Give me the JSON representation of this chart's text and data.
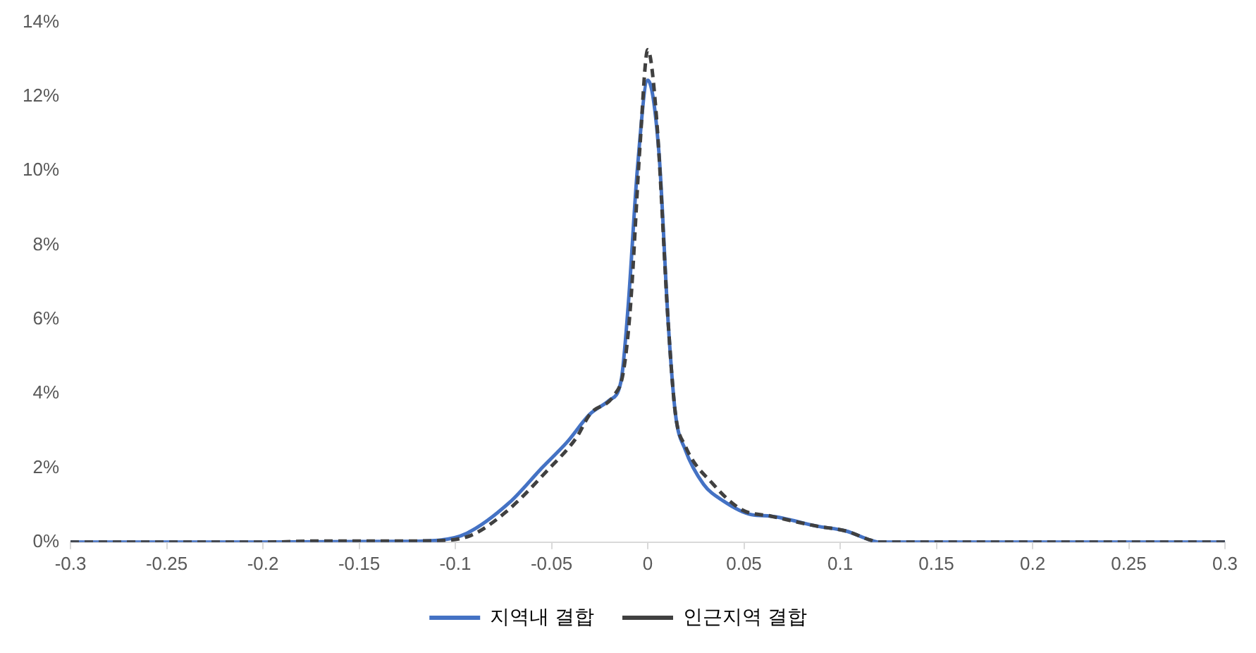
{
  "chart_data": {
    "type": "line",
    "xlim": [
      -0.3,
      0.3
    ],
    "xticks": [
      -0.3,
      -0.25,
      -0.2,
      -0.15,
      -0.1,
      -0.05,
      0,
      0.05,
      0.1,
      0.15,
      0.2,
      0.25,
      0.3
    ],
    "ylim": [
      0,
      14
    ],
    "yticks": [
      {
        "value": 0,
        "label": "0%"
      },
      {
        "value": 2,
        "label": "2%"
      },
      {
        "value": 4,
        "label": "4%"
      },
      {
        "value": 6,
        "label": "6%"
      },
      {
        "value": 8,
        "label": "8%"
      },
      {
        "value": 10,
        "label": "10%"
      },
      {
        "value": 12,
        "label": "12%"
      },
      {
        "value": 14,
        "label": "14%"
      }
    ],
    "grid": false,
    "legend": "bottom",
    "marker": "none",
    "series": [
      {
        "name": "지역내 결합",
        "color": "#4472c4",
        "line_style": "solid",
        "x": [
          -0.3,
          -0.2,
          -0.13,
          -0.109,
          -0.094,
          -0.072,
          -0.055,
          -0.042,
          -0.03,
          -0.02,
          -0.0139,
          -0.0102,
          -0.0053,
          0,
          0.0058,
          0.0107,
          0.0144,
          0.0194,
          0.029,
          0.039,
          0.054,
          0.064,
          0.088,
          0.103,
          0.116,
          0.12,
          0.2,
          0.3
        ],
        "values": [
          0,
          0,
          0.02,
          0.05,
          0.24,
          1.06,
          2.0,
          2.69,
          3.45,
          3.82,
          4.33,
          6.34,
          10.1,
          12.44,
          10.5,
          5.85,
          3.45,
          2.5,
          1.56,
          1.12,
          0.74,
          0.7,
          0.43,
          0.3,
          0.05,
          0,
          0,
          0
        ]
      },
      {
        "name": "인근지역 결합",
        "color": "#404040",
        "line_style": "dashed",
        "x": [
          -0.3,
          -0.2,
          -0.17,
          -0.13,
          -0.109,
          -0.092,
          -0.074,
          -0.052,
          -0.037,
          -0.03,
          -0.0176,
          -0.0127,
          -0.009,
          -0.004,
          0,
          0.0046,
          0.0107,
          0.0144,
          0.0194,
          0.034,
          0.049,
          0.064,
          0.088,
          0.103,
          0.116,
          0.12,
          0.2,
          0.3
        ],
        "values": [
          0,
          0,
          0.03,
          0.03,
          0.04,
          0.18,
          0.8,
          1.94,
          2.82,
          3.45,
          3.95,
          4.58,
          6.34,
          10.7,
          13.26,
          11.4,
          5.85,
          3.45,
          2.6,
          1.56,
          0.87,
          0.7,
          0.43,
          0.3,
          0.05,
          0,
          0,
          0
        ]
      }
    ]
  }
}
